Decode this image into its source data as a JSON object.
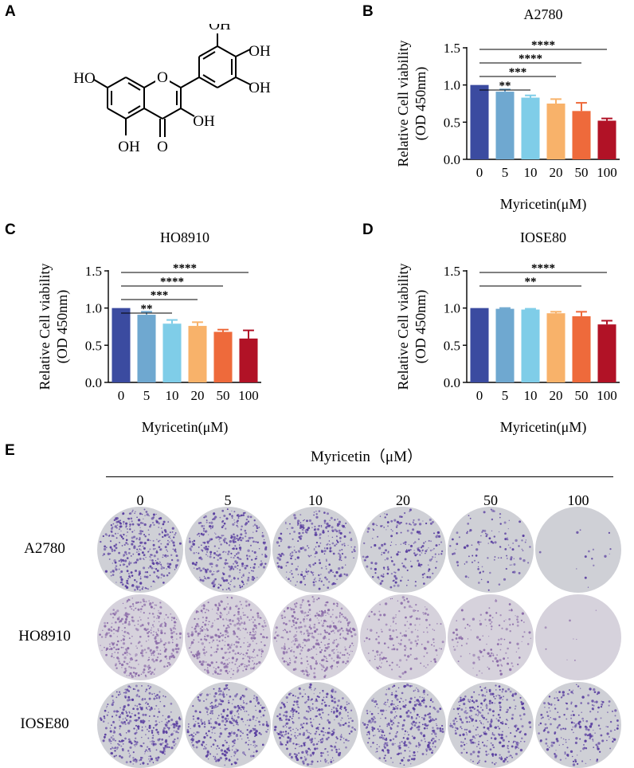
{
  "panels": {
    "a": "A",
    "b": "B",
    "c": "C",
    "d": "D",
    "e": "E"
  },
  "structure": {
    "labels": [
      "HO",
      "OH",
      "OH",
      "OH",
      "OH",
      "OH",
      "O",
      "O"
    ]
  },
  "colors": {
    "bars": [
      "#3b4ba0",
      "#6fa8d0",
      "#7fcde8",
      "#f8b26a",
      "#ee6a3b",
      "#b11226"
    ]
  },
  "chart_data": [
    {
      "type": "bar",
      "panel": "B",
      "title": "A2780",
      "xlabel": "Myricetin(μM)",
      "ylabel": [
        "Relative Cell viability",
        "(OD 450nm)"
      ],
      "categories": [
        "0",
        "5",
        "10",
        "20",
        "50",
        "100"
      ],
      "values": [
        1.0,
        0.91,
        0.83,
        0.75,
        0.65,
        0.52
      ],
      "errors": [
        0.0,
        0.03,
        0.03,
        0.06,
        0.11,
        0.03
      ],
      "ylim": [
        0,
        1.5
      ],
      "yticks": [
        "0.0",
        "0.5",
        "1.0",
        "1.5"
      ],
      "significance": [
        {
          "from": 0,
          "to": 2,
          "label": "**"
        },
        {
          "from": 0,
          "to": 3,
          "label": "***"
        },
        {
          "from": 0,
          "to": 4,
          "label": "****"
        },
        {
          "from": 0,
          "to": 5,
          "label": "****"
        }
      ]
    },
    {
      "type": "bar",
      "panel": "C",
      "title": "HO8910",
      "xlabel": "Myricetin(μM)",
      "ylabel": [
        "Relative Cell viability",
        "(OD 450nm)"
      ],
      "categories": [
        "0",
        "5",
        "10",
        "20",
        "50",
        "100"
      ],
      "values": [
        1.0,
        0.91,
        0.79,
        0.76,
        0.68,
        0.59
      ],
      "errors": [
        0.0,
        0.04,
        0.05,
        0.05,
        0.03,
        0.11
      ],
      "ylim": [
        0,
        1.5
      ],
      "yticks": [
        "0.0",
        "0.5",
        "1.0",
        "1.5"
      ],
      "significance": [
        {
          "from": 0,
          "to": 2,
          "label": "**"
        },
        {
          "from": 0,
          "to": 3,
          "label": "***"
        },
        {
          "from": 0,
          "to": 4,
          "label": "****"
        },
        {
          "from": 0,
          "to": 5,
          "label": "****"
        }
      ]
    },
    {
      "type": "bar",
      "panel": "D",
      "title": "IOSE80",
      "xlabel": "Myricetin(μM)",
      "ylabel": [
        "Relative Cell viability",
        "(OD 450nm)"
      ],
      "categories": [
        "0",
        "5",
        "10",
        "20",
        "50",
        "100"
      ],
      "values": [
        1.0,
        0.99,
        0.98,
        0.93,
        0.89,
        0.78
      ],
      "errors": [
        0.0,
        0.01,
        0.01,
        0.02,
        0.06,
        0.05
      ],
      "ylim": [
        0,
        1.5
      ],
      "yticks": [
        "0.0",
        "0.5",
        "1.0",
        "1.5"
      ],
      "significance": [
        {
          "from": 0,
          "to": 4,
          "label": "**"
        },
        {
          "from": 0,
          "to": 5,
          "label": "****"
        }
      ]
    }
  ],
  "colony": {
    "title": "Myricetin（μM）",
    "columns": [
      "0",
      "5",
      "10",
      "20",
      "50",
      "100"
    ],
    "rows": [
      {
        "label": "A2780",
        "density": [
          1.0,
          0.95,
          0.75,
          0.55,
          0.3,
          0.04
        ]
      },
      {
        "label": "HO8910",
        "density": [
          1.0,
          1.0,
          1.0,
          0.45,
          0.35,
          0.02
        ]
      },
      {
        "label": "IOSE80",
        "density": [
          1.0,
          1.0,
          1.0,
          0.95,
          0.9,
          0.6
        ]
      }
    ]
  }
}
